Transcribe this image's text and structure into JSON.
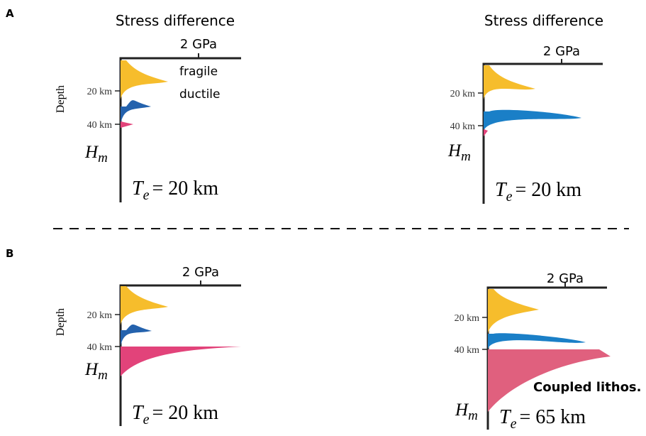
{
  "labels": {
    "a": "A",
    "b": "B"
  },
  "panels": [
    {
      "title": "Stress difference",
      "scale": "2 GPa",
      "depth_axis": "Depth",
      "annotations": [
        "fragile",
        "ductile"
      ],
      "ticks": [
        "20 km",
        "40 km"
      ],
      "hm": {
        "symbol": "H",
        "subscript": "m"
      },
      "te": {
        "symbol": "T",
        "subscript": "e",
        "text": "= 20 km"
      }
    },
    {
      "title": "Stress difference",
      "scale": "2 GPa",
      "ticks": [
        "20 km",
        "40 km"
      ],
      "hm": {
        "symbol": "H",
        "subscript": "m"
      },
      "te": {
        "symbol": "T",
        "subscript": "e",
        "text": "= 20 km"
      }
    },
    {
      "scale": "2 GPa",
      "depth_axis": "Depth",
      "ticks": [
        "20 km",
        "40 km"
      ],
      "hm": {
        "symbol": "H",
        "subscript": "m"
      },
      "te": {
        "symbol": "T",
        "subscript": "e",
        "text": "= 20 km"
      }
    },
    {
      "scale": "2 GPa",
      "ticks": [
        "20 km",
        "40 km"
      ],
      "hm": {
        "symbol": "H",
        "subscript": "m"
      },
      "te": {
        "symbol": "T",
        "subscript": "e",
        "text": "= 65 km"
      },
      "note": "Coupled lithos."
    }
  ]
}
